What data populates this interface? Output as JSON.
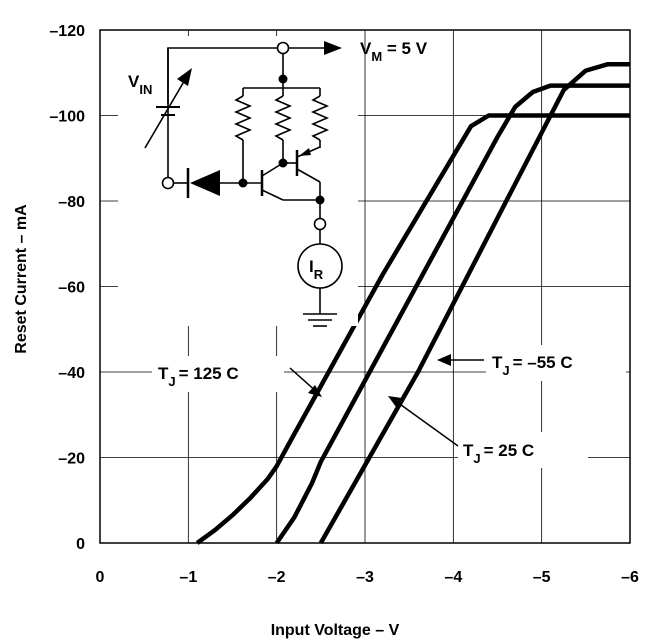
{
  "chart_data": {
    "type": "line",
    "xlabel": "Input Voltage – V",
    "ylabel": "Reset Current – mA",
    "xlim": [
      0,
      -6
    ],
    "ylim": [
      0,
      -120
    ],
    "grid": true,
    "x_ticks": [
      "0",
      "–1",
      "–2",
      "–3",
      "–4",
      "–5",
      "–6"
    ],
    "y_ticks": [
      "0",
      "–20",
      "–40",
      "–60",
      "–80",
      "–100",
      "–120"
    ],
    "series": [
      {
        "name": "T J = 125 C",
        "label": {
          "main": "T",
          "sub": "J",
          "rest": "= 125  C"
        },
        "points": [
          [
            -1.1,
            0
          ],
          [
            -1.3,
            -3
          ],
          [
            -1.5,
            -6.5
          ],
          [
            -1.7,
            -10.5
          ],
          [
            -1.9,
            -15
          ],
          [
            -2.0,
            -18
          ],
          [
            -2.2,
            -25.5
          ],
          [
            -3.2,
            -62.8
          ],
          [
            -4.2,
            -97.5
          ],
          [
            -4.4,
            -100
          ],
          [
            -6.0,
            -100
          ]
        ]
      },
      {
        "name": "T J = –55 C",
        "label": {
          "main": "T",
          "sub": "J",
          "rest": "= –55  C"
        },
        "points": [
          [
            -2.0,
            0
          ],
          [
            -2.2,
            -6
          ],
          [
            -2.4,
            -14
          ],
          [
            -2.5,
            -19
          ],
          [
            -3.5,
            -57
          ],
          [
            -4.5,
            -95
          ],
          [
            -4.7,
            -102
          ],
          [
            -4.9,
            -105.5
          ],
          [
            -5.1,
            -107
          ],
          [
            -6.0,
            -107
          ]
        ]
      },
      {
        "name": "T J = 25 C",
        "label": {
          "main": "T",
          "sub": "J",
          "rest": "= 25  C"
        },
        "points": [
          [
            -2.5,
            0
          ],
          [
            -3.6,
            -40
          ],
          [
            -4.6,
            -80
          ],
          [
            -5.0,
            -96
          ],
          [
            -5.25,
            -106
          ],
          [
            -5.5,
            -110.5
          ],
          [
            -5.75,
            -112
          ],
          [
            -6.0,
            -112
          ]
        ]
      }
    ]
  },
  "circuit": {
    "vin": {
      "main": "V",
      "sub": "IN"
    },
    "vm": {
      "main": "V",
      "sub": "M",
      "rest": " = 5 V"
    },
    "ir": {
      "main": "I",
      "sub": "R"
    }
  }
}
